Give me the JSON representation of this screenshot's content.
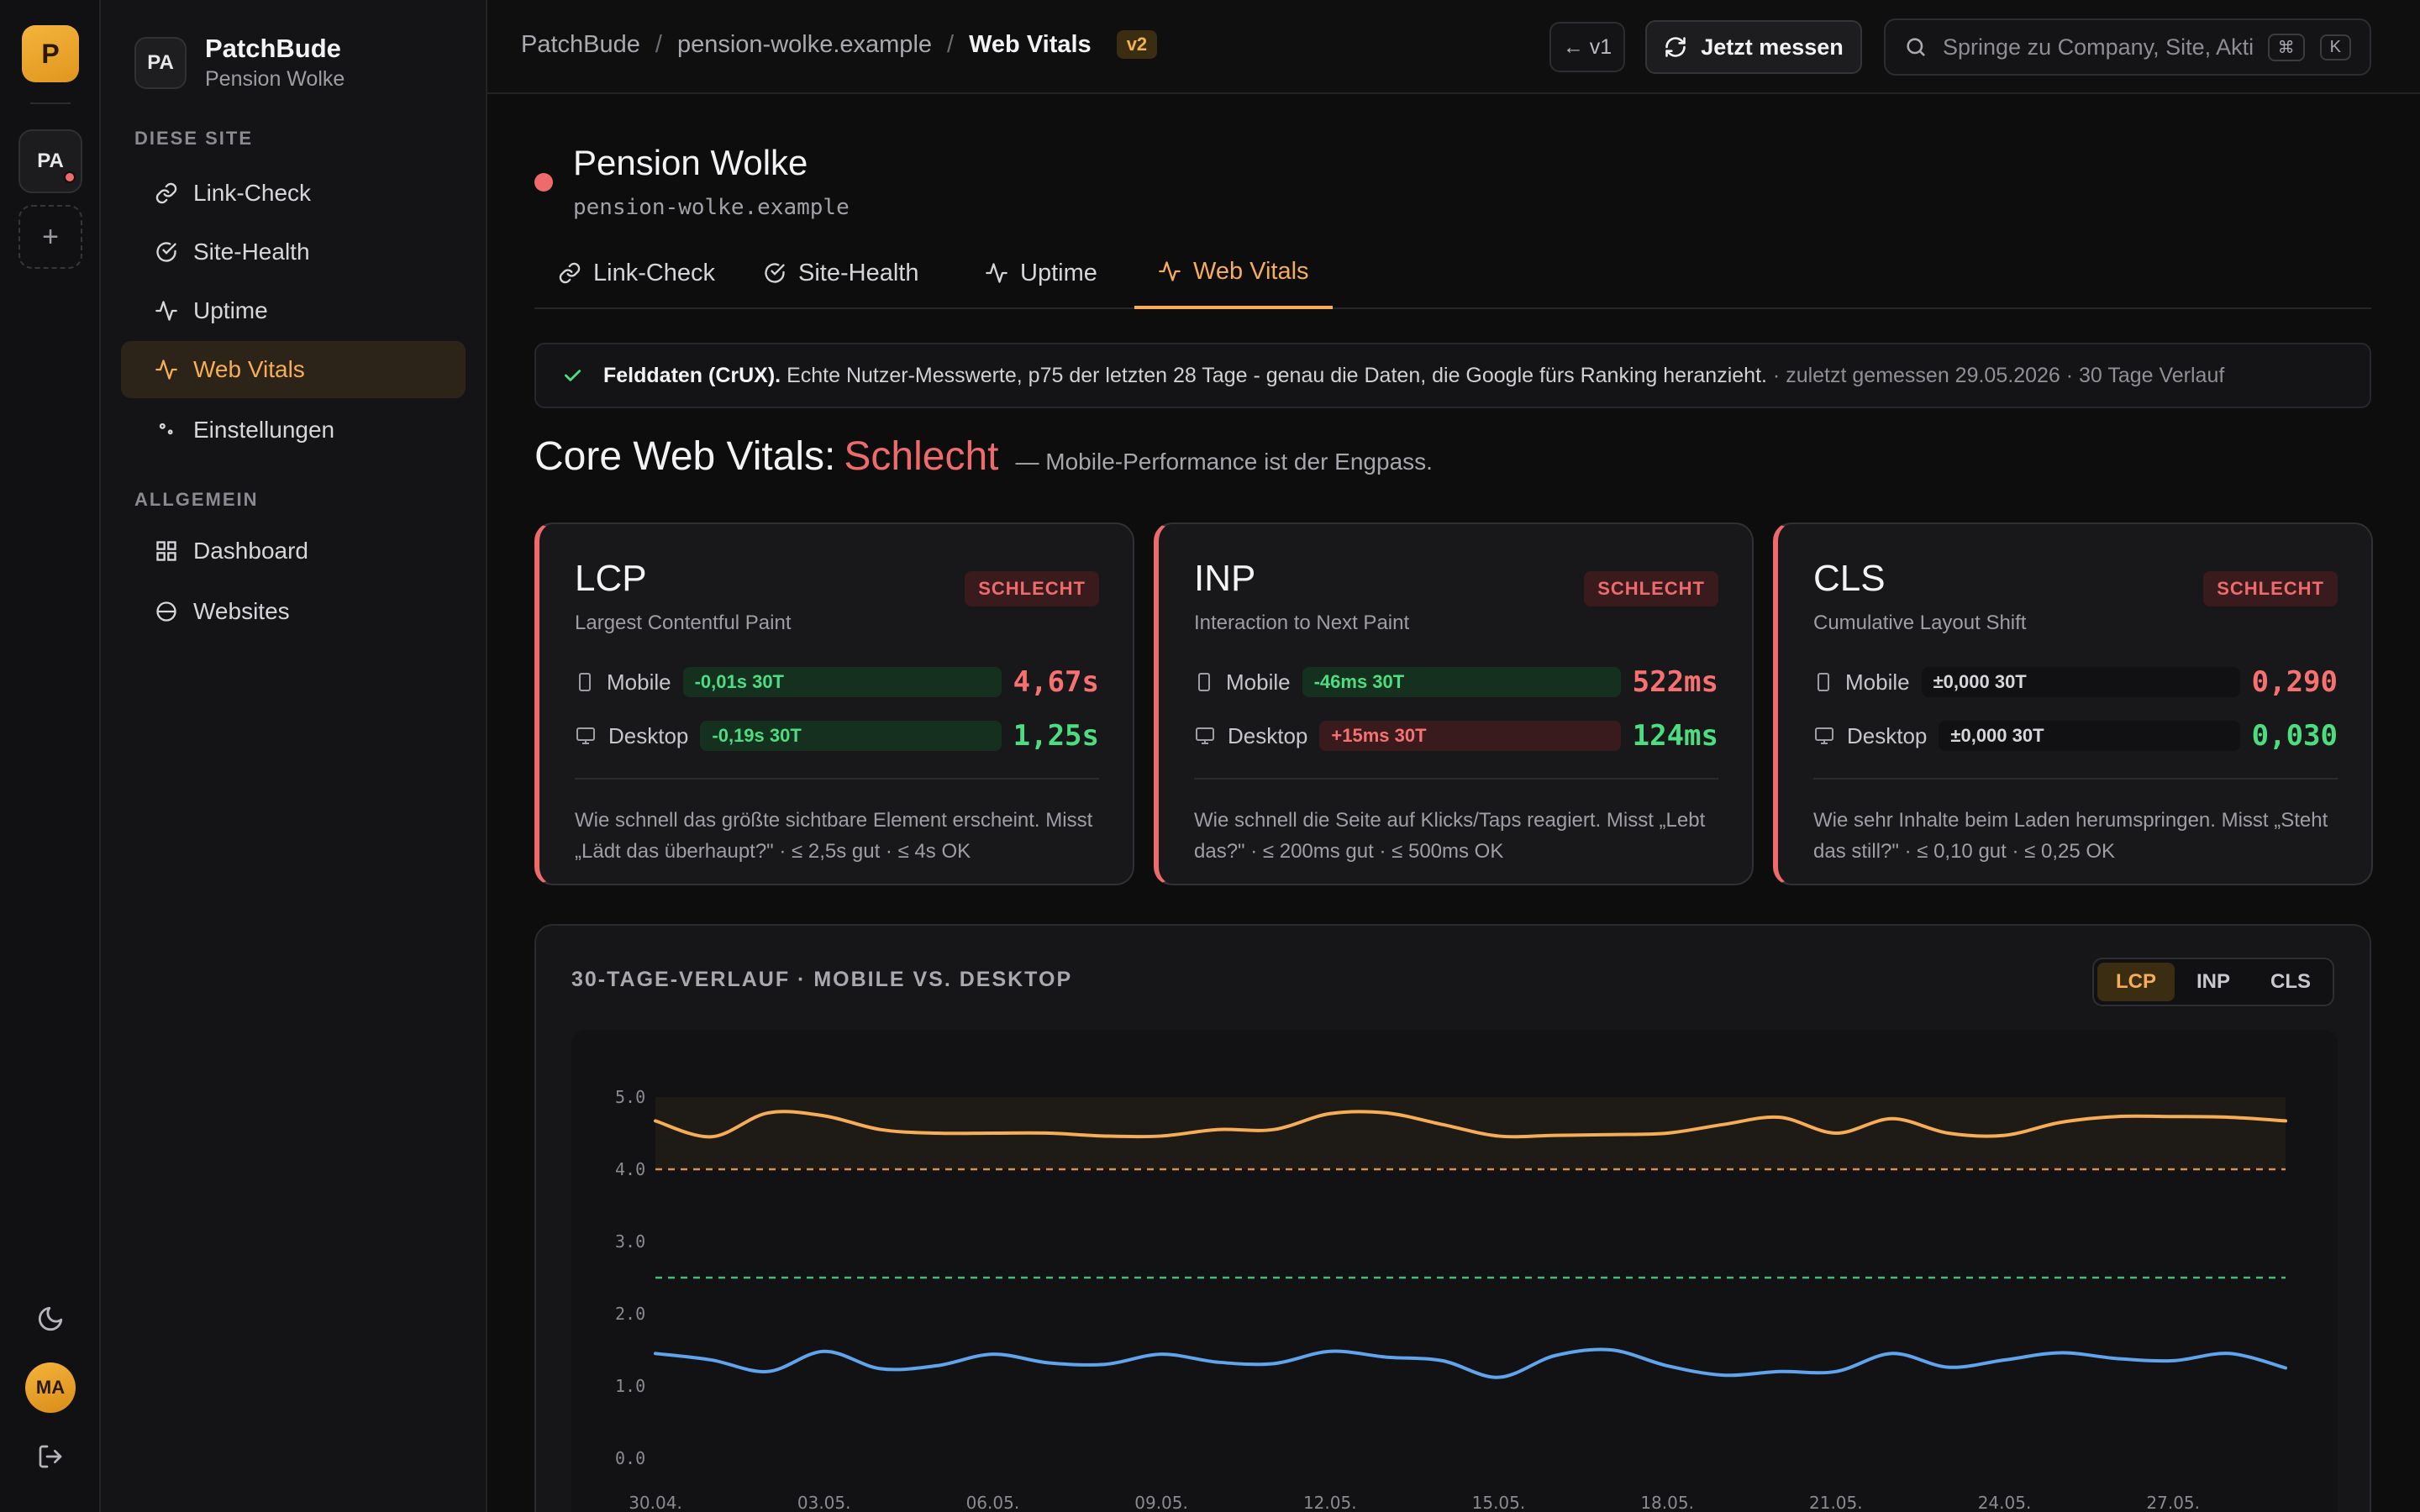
{
  "app": {
    "logo_letter": "P",
    "site_tile": "PA",
    "avatar": "MA",
    "brand": "PatchBude",
    "brand_sub": "Pension Wolke",
    "brand_badge": "PA"
  },
  "sidebar": {
    "section_site": "DIESE SITE",
    "section_general": "ALLGEMEIN",
    "items": [
      {
        "label": "Link-Check",
        "icon": "link-icon"
      },
      {
        "label": "Site-Health",
        "icon": "check-circle-icon"
      },
      {
        "label": "Uptime",
        "icon": "activity-icon"
      },
      {
        "label": "Web Vitals",
        "icon": "pulse-icon",
        "active": true
      },
      {
        "label": "Einstellungen",
        "icon": "settings-icon"
      }
    ],
    "general_items": [
      {
        "label": "Dashboard",
        "icon": "grid-icon"
      },
      {
        "label": "Websites",
        "icon": "globe-icon"
      }
    ]
  },
  "topbar": {
    "crumbs": [
      "PatchBude",
      "pension-wolke.example",
      "Web Vitals"
    ],
    "version_badge": "v2",
    "back_v1": "← v1",
    "measure_label": "Jetzt messen",
    "search_placeholder": "Springe zu Company, Site, Aktion…",
    "kbd": [
      "⌘",
      "K"
    ]
  },
  "site": {
    "title": "Pension Wolke",
    "domain": "pension-wolke.example"
  },
  "tabs": [
    "Link-Check",
    "Site-Health",
    "Uptime",
    "Web Vitals"
  ],
  "notice": {
    "bold": "Felddaten (CrUX).",
    "text": "Echte Nutzer-Messwerte, p75 der letzten 28 Tage - genau die Daten, die Google fürs Ranking heranzieht.",
    "meta": "· zuletzt gemessen 29.05.2026 · 30 Tage Verlauf"
  },
  "cwv": {
    "title": "Core Web Vitals:",
    "status": "Schlecht",
    "desc": "— Mobile-Performance ist der Engpass."
  },
  "cards": [
    {
      "title": "LCP",
      "subtitle": "Largest Contentful Paint",
      "badge": "SCHLECHT",
      "mobile_label": "Mobile",
      "mobile_trend": "-0,01s 30T",
      "mobile_trend_state": "good",
      "mobile_value": "4,67s",
      "mobile_value_state": "red",
      "desktop_label": "Desktop",
      "desktop_trend": "-0,19s 30T",
      "desktop_trend_state": "good",
      "desktop_value": "1,25s",
      "desktop_value_state": "green",
      "foot": "Wie schnell das größte sichtbare Element erscheint. Misst „Lädt das überhaupt?\" · ≤ 2,5s gut · ≤ 4s OK"
    },
    {
      "title": "INP",
      "subtitle": "Interaction to Next Paint",
      "badge": "SCHLECHT",
      "mobile_label": "Mobile",
      "mobile_trend": "-46ms 30T",
      "mobile_trend_state": "good",
      "mobile_value": "522ms",
      "mobile_value_state": "red",
      "desktop_label": "Desktop",
      "desktop_trend": "+15ms 30T",
      "desktop_trend_state": "bad",
      "desktop_value": "124ms",
      "desktop_value_state": "green",
      "foot": "Wie schnell die Seite auf Klicks/Taps reagiert. Misst „Lebt das?\" · ≤ 200ms gut · ≤ 500ms OK"
    },
    {
      "title": "CLS",
      "subtitle": "Cumulative Layout Shift",
      "badge": "SCHLECHT",
      "mobile_label": "Mobile",
      "mobile_trend": "±0,000 30T",
      "mobile_trend_state": "neutral",
      "mobile_value": "0,290",
      "mobile_value_state": "red",
      "desktop_label": "Desktop",
      "desktop_trend": "±0,000 30T",
      "desktop_trend_state": "neutral",
      "desktop_value": "0,030",
      "desktop_value_state": "green",
      "foot": "Wie sehr Inhalte beim Laden herumspringen. Misst „Steht das still?\" · ≤ 0,10 gut · ≤ 0,25 OK"
    }
  ],
  "chart_section": {
    "title": "30-TAGE-VERLAUF · MOBILE VS. DESKTOP",
    "segments": [
      "LCP",
      "INP",
      "CLS"
    ],
    "active_segment": "LCP"
  },
  "colors": {
    "accent": "#f6ad55",
    "bad": "#ef6b6b",
    "good": "#4ade80",
    "desktop": "#5fa4ec"
  },
  "chart_data": {
    "type": "line",
    "x": [
      "30.04.",
      "01.05.",
      "02.05.",
      "03.05.",
      "04.05.",
      "05.05.",
      "06.05.",
      "07.05.",
      "08.05.",
      "09.05.",
      "10.05.",
      "11.05.",
      "12.05.",
      "13.05.",
      "14.05.",
      "15.05.",
      "16.05.",
      "17.05.",
      "18.05.",
      "19.05.",
      "20.05.",
      "21.05.",
      "22.05.",
      "23.05.",
      "24.05.",
      "25.05.",
      "26.05.",
      "27.05.",
      "28.05.",
      "29.05."
    ],
    "x_tick_labels": [
      "30.04.",
      "03.05.",
      "06.05.",
      "09.05.",
      "12.05.",
      "15.05.",
      "18.05.",
      "21.05.",
      "24.05.",
      "27.05."
    ],
    "series": [
      {
        "color": "#f6ad55",
        "values": [
          4.67,
          4.45,
          4.78,
          4.74,
          4.55,
          4.5,
          4.5,
          4.5,
          4.46,
          4.46,
          4.55,
          4.55,
          4.77,
          4.78,
          4.62,
          4.46,
          4.47,
          4.48,
          4.5,
          4.62,
          4.72,
          4.5,
          4.7,
          4.5,
          4.47,
          4.65,
          4.73,
          4.73,
          4.72,
          4.67
        ]
      },
      {
        "color": "#5fa4ec",
        "values": [
          1.45,
          1.36,
          1.2,
          1.48,
          1.24,
          1.28,
          1.44,
          1.32,
          1.3,
          1.44,
          1.33,
          1.31,
          1.48,
          1.4,
          1.35,
          1.12,
          1.42,
          1.5,
          1.28,
          1.15,
          1.2,
          1.2,
          1.45,
          1.26,
          1.36,
          1.46,
          1.38,
          1.35,
          1.45,
          1.25
        ]
      }
    ],
    "thresholds": [
      {
        "value": 4.0,
        "color": "#f6ad55"
      },
      {
        "value": 2.5,
        "color": "#4ade80"
      }
    ],
    "ylim": [
      0,
      5
    ],
    "y_ticks": [
      "0.0",
      "1.0",
      "2.0",
      "3.0",
      "4.0",
      "5.0"
    ],
    "grid": false,
    "legend": "none"
  }
}
